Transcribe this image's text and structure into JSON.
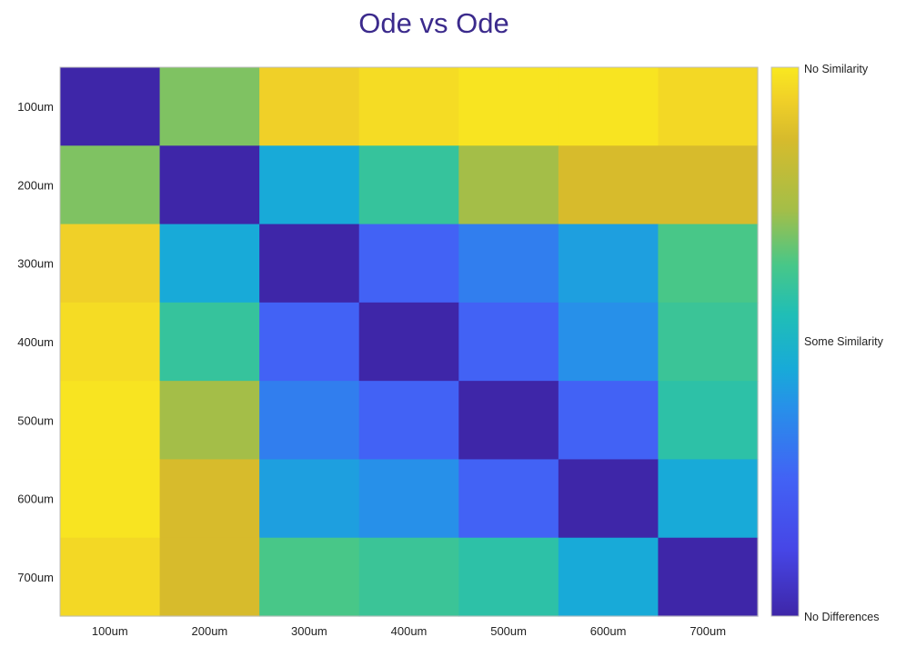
{
  "chart_data": {
    "type": "heatmap",
    "title": "Ode vs Ode",
    "title_color": "#3b2a8c",
    "x_categories": [
      "100um",
      "200um",
      "300um",
      "400um",
      "500um",
      "600um",
      "700um"
    ],
    "y_categories": [
      "100um",
      "200um",
      "300um",
      "400um",
      "500um",
      "600um",
      "700um"
    ],
    "values": [
      [
        0.0,
        0.7,
        0.94,
        0.97,
        0.99,
        0.99,
        0.96
      ],
      [
        0.7,
        0.0,
        0.45,
        0.6,
        0.74,
        0.87,
        0.87
      ],
      [
        0.94,
        0.45,
        0.0,
        0.25,
        0.33,
        0.42,
        0.64
      ],
      [
        0.97,
        0.6,
        0.25,
        0.0,
        0.25,
        0.38,
        0.61
      ],
      [
        0.99,
        0.74,
        0.33,
        0.25,
        0.0,
        0.25,
        0.58
      ],
      [
        0.99,
        0.87,
        0.42,
        0.38,
        0.25,
        0.0,
        0.45
      ],
      [
        0.96,
        0.87,
        0.64,
        0.61,
        0.58,
        0.45,
        0.0
      ]
    ],
    "colormap": "parula",
    "colorbar": {
      "range": [
        0,
        1
      ],
      "labels": [
        "No Differences",
        "Some Similarity",
        "No Similarity"
      ],
      "label_positions": [
        0,
        0.5,
        1
      ]
    },
    "grid": false
  }
}
